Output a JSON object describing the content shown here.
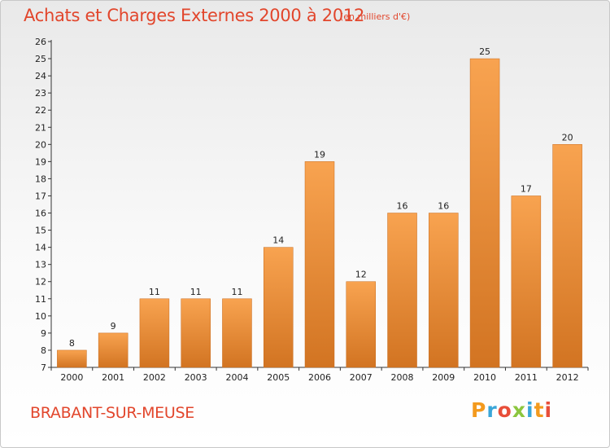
{
  "header": {
    "title": "Achats et Charges Externes 2000 à 2012",
    "unit_note": "(en milliers d'€)"
  },
  "footer": {
    "commune": "BRABANT-SUR-MEUSE",
    "logo_letters": [
      "P",
      "r",
      "o",
      "x",
      "i",
      "t",
      "i"
    ],
    "logo_colors": [
      "#f39a1e",
      "#3aa6d8",
      "#e84e39",
      "#8cc63e",
      "#3aa6d8",
      "#f39a1e",
      "#e84e39"
    ]
  },
  "chart_data": {
    "type": "bar",
    "title": "Achats et Charges Externes 2000 à 2012",
    "categories": [
      "2000",
      "2001",
      "2002",
      "2003",
      "2004",
      "2005",
      "2006",
      "2007",
      "2008",
      "2009",
      "2010",
      "2011",
      "2012"
    ],
    "values": [
      8,
      9,
      11,
      11,
      11,
      14,
      19,
      12,
      16,
      16,
      25,
      17,
      20
    ],
    "ylim": [
      7,
      26
    ],
    "yticks": [
      7,
      8,
      9,
      10,
      11,
      12,
      13,
      14,
      15,
      16,
      17,
      18,
      19,
      20,
      21,
      22,
      23,
      24,
      25,
      26
    ],
    "grid": false,
    "bar_color_light": "#f8a350",
    "bar_color_dark": "#d27422"
  }
}
